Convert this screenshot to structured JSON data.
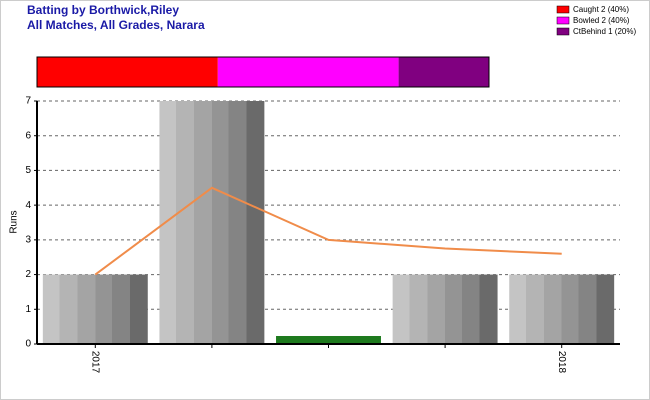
{
  "chart_data": {
    "type": "bar",
    "title": "Batting by Borthwick,Riley",
    "subtitle": "All Matches, All Grades, Narara",
    "y_label": "Runs",
    "categories": [
      "2017",
      null,
      null,
      null,
      "2018"
    ],
    "series": [
      {
        "values": [
          2,
          7,
          0,
          2,
          2
        ],
        "color": "#999999"
      },
      {
        "type": "line",
        "values": [
          2,
          4.5,
          3,
          2.75,
          2.6
        ],
        "color": "#f08c4a"
      }
    ],
    "zero_color": "#1e7a1e",
    "ylim": [
      0,
      7
    ],
    "yticks": [
      0,
      1,
      2,
      3,
      4,
      5,
      6,
      7
    ],
    "grid": true,
    "dismissals": {
      "type": "stacked-bar",
      "series": [
        {
          "name": "Caught 2 (40%)",
          "color": "#ff0000",
          "value": 2
        },
        {
          "name": "Bowled 2 (40%)",
          "color": "#ff00ff",
          "value": 2
        },
        {
          "name": "CtBehind 1 (20%)",
          "color": "#800080",
          "value": 1
        }
      ]
    },
    "legend": "top-right"
  }
}
